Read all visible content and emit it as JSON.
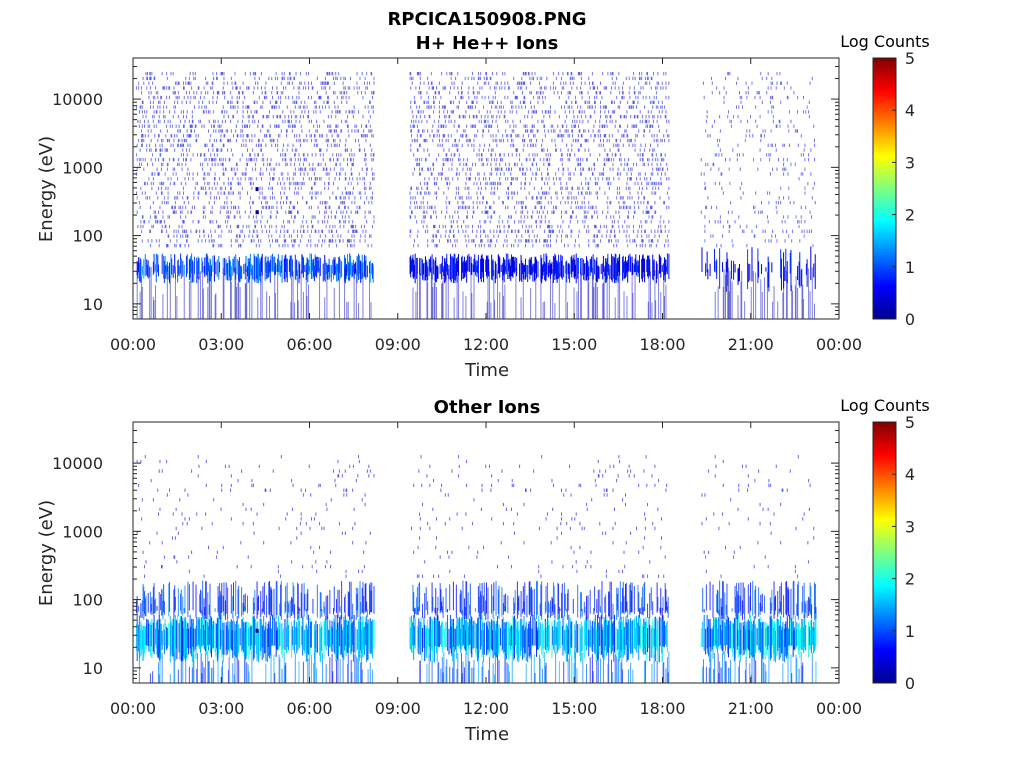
{
  "title": "RPCICA150908.PNG",
  "chart_data": [
    {
      "type": "heatmap",
      "title": "H+ He++ Ions",
      "xlabel": "Time",
      "ylabel": "Energy (eV)",
      "x_ticks": [
        "00:00",
        "03:00",
        "06:00",
        "09:00",
        "12:00",
        "15:00",
        "18:00",
        "21:00",
        "00:00"
      ],
      "xlim_hours": [
        0,
        24
      ],
      "y_scale": "log",
      "y_ticks": [
        "10",
        "100",
        "1000",
        "10000"
      ],
      "ylim": [
        6,
        40000
      ],
      "colorbar": {
        "label": "Log Counts",
        "ticks": [
          "0",
          "1",
          "2",
          "3",
          "4",
          "5"
        ],
        "range": [
          0,
          5
        ],
        "colormap": "jet"
      },
      "data_segments_hours": [
        [
          0.1,
          8.2
        ],
        [
          9.4,
          18.2
        ],
        [
          19.3,
          23.2
        ]
      ],
      "features": [
        {
          "energy_band_eV": [
            20,
            45
          ],
          "log_counts": 1.0,
          "note_hours": [
            0.1,
            8.2
          ]
        },
        {
          "energy_band_eV": [
            100,
            20000
          ],
          "log_counts": 0.3,
          "note_hours": [
            0.1,
            18.2
          ]
        },
        {
          "energy_eV": 480,
          "time_hours": 4.2,
          "log_counts": 0.1
        },
        {
          "energy_eV": 220,
          "time_hours": 4.2,
          "log_counts": 0.1
        }
      ]
    },
    {
      "type": "heatmap",
      "title": "Other Ions",
      "xlabel": "Time",
      "ylabel": "Energy (eV)",
      "x_ticks": [
        "00:00",
        "03:00",
        "06:00",
        "09:00",
        "12:00",
        "15:00",
        "18:00",
        "21:00",
        "00:00"
      ],
      "xlim_hours": [
        0,
        24
      ],
      "y_scale": "log",
      "y_ticks": [
        "10",
        "100",
        "1000",
        "10000"
      ],
      "ylim": [
        6,
        40000
      ],
      "colorbar": {
        "label": "Log Counts",
        "ticks": [
          "0",
          "1",
          "2",
          "3",
          "4",
          "5"
        ],
        "range": [
          0,
          5
        ],
        "colormap": "jet"
      },
      "data_segments_hours": [
        [
          0.1,
          8.2
        ],
        [
          9.4,
          18.2
        ],
        [
          19.3,
          23.2
        ]
      ],
      "features": [
        {
          "energy_band_eV": [
            15,
            60
          ],
          "log_counts": 1.8,
          "note_hours": [
            0.1,
            23.2
          ]
        },
        {
          "energy_band_eV": [
            60,
            200
          ],
          "log_counts": 0.8,
          "note_hours": [
            0.1,
            23.2
          ]
        },
        {
          "energy_eV": 35,
          "time_hours": 4.2,
          "log_counts": 0.1
        }
      ]
    }
  ]
}
